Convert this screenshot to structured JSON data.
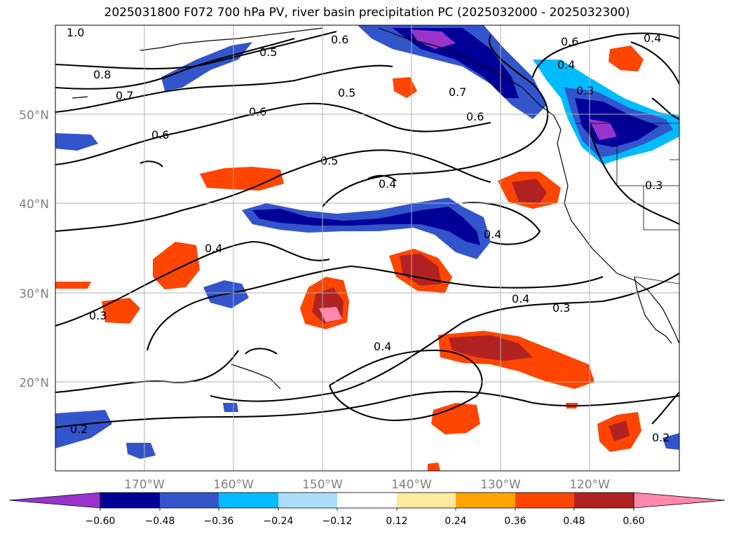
{
  "title": "2025031800 F072 700 hPa PV, river basin precipitation PC (2025032000 - 2025032300)",
  "map": {
    "lat_labels": [
      "50°N",
      "40°N",
      "30°N",
      "20°N"
    ],
    "lon_labels": [
      "170°W",
      "160°W",
      "150°W",
      "140°W",
      "130°W",
      "120°W"
    ],
    "contour_labels": [
      "1.0",
      "0.8",
      "0.7",
      "0.6",
      "0.5",
      "0.4",
      "0.3",
      "0.2"
    ]
  },
  "colorbar": {
    "ticks": [
      "−0.60",
      "−0.48",
      "−0.36",
      "−0.24",
      "−0.12",
      "0.12",
      "0.24",
      "0.36",
      "0.48",
      "0.60"
    ],
    "colors": [
      "#9933cc",
      "#000099",
      "#3355cc",
      "#00bbff",
      "#aaddff",
      "#ffffff",
      "#ffe99a",
      "#ffa500",
      "#ff4500",
      "#b22222",
      "#ff88aa"
    ]
  }
}
